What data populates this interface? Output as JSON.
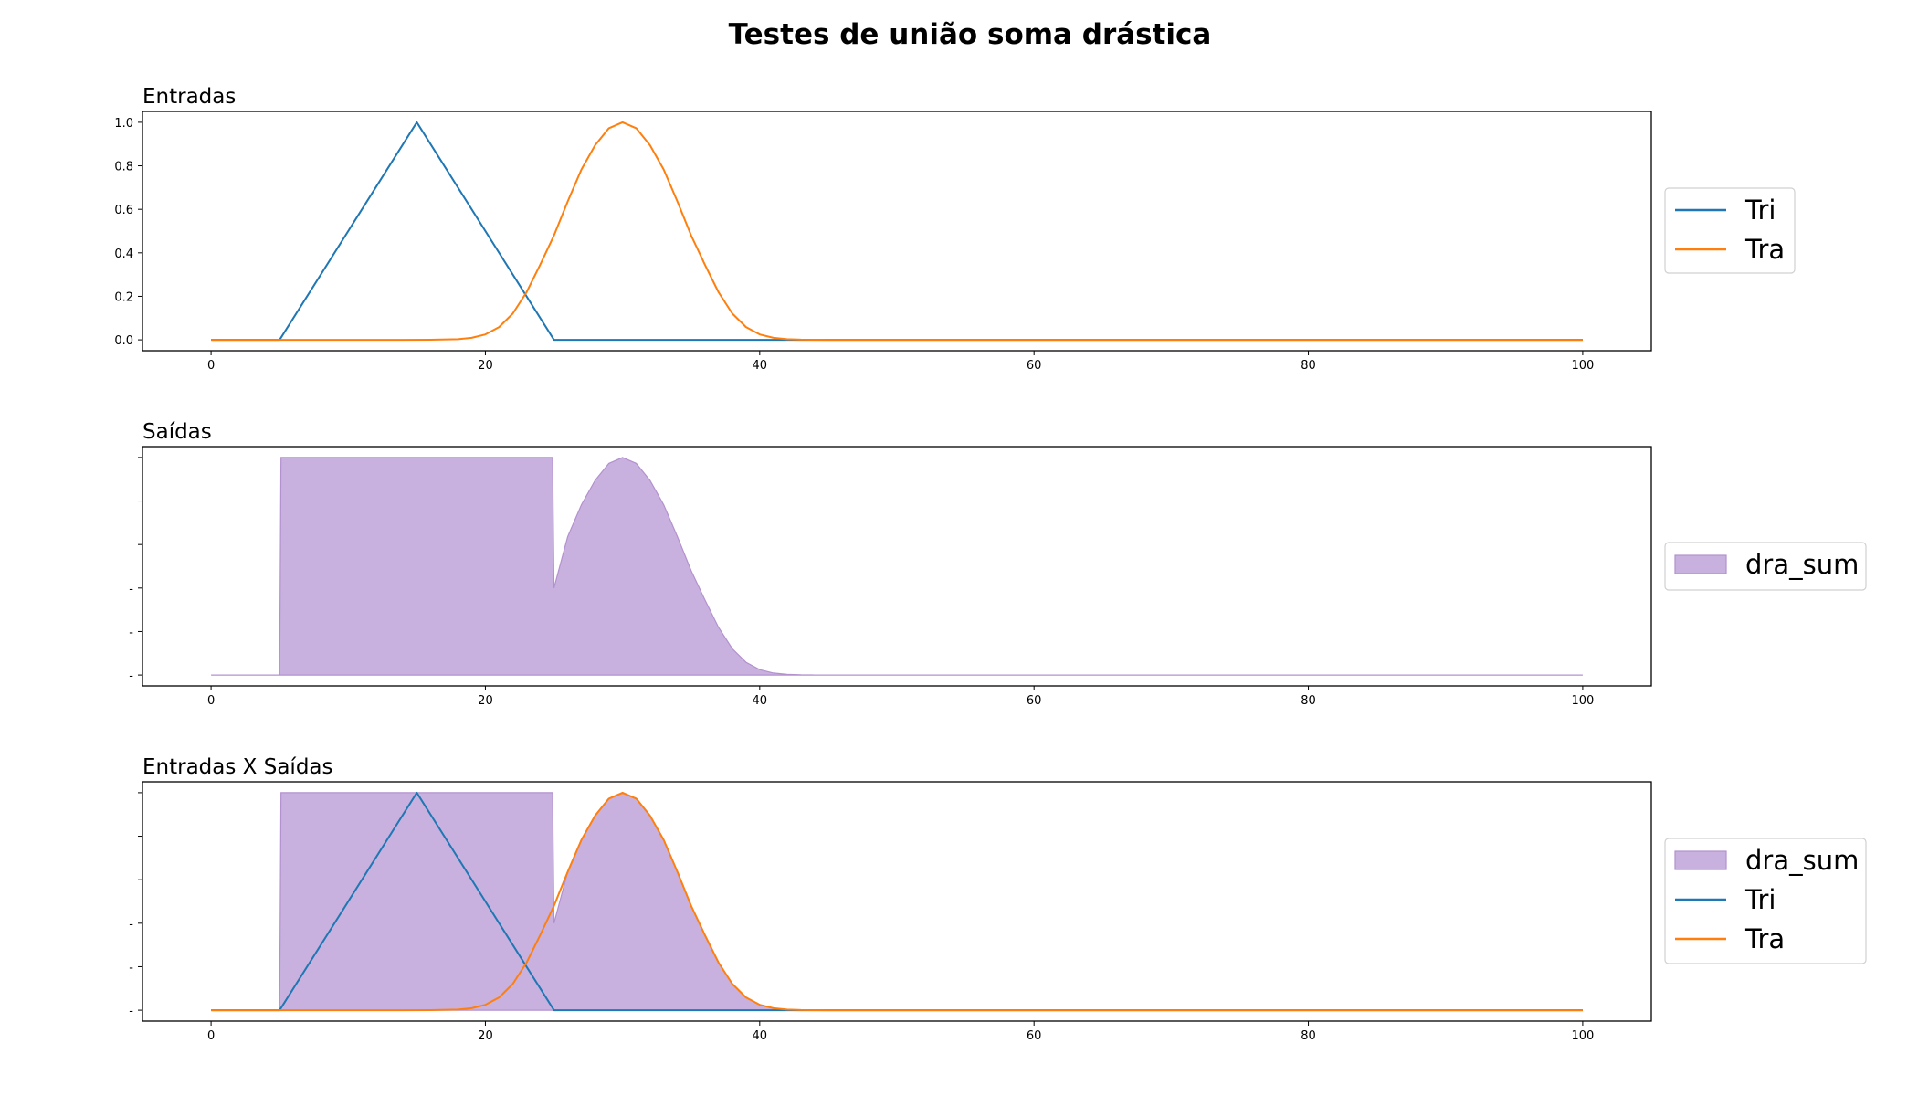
{
  "figure": {
    "title": "Testes de união soma drástica"
  },
  "colors": {
    "tri": "#1f77b4",
    "tra": "#ff7f0e",
    "dra_sum_fill": "#c8b1de",
    "dra_sum_edge": "#b391cf"
  },
  "chart_data": [
    {
      "type": "line",
      "title": "Entradas",
      "xlim": [
        -5,
        105
      ],
      "ylim": [
        -0.05,
        1.05
      ],
      "xticks": [
        0,
        20,
        40,
        60,
        80,
        100
      ],
      "yticks": [
        "0.0",
        "0.2",
        "0.4",
        "0.6",
        "0.8",
        "1.0"
      ],
      "legend_position": "right",
      "series": [
        {
          "name": "Tri",
          "kind": "line",
          "color": "#1f77b4",
          "x": [
            0,
            5,
            15,
            25,
            100
          ],
          "y": [
            0,
            0,
            1,
            0,
            0
          ]
        },
        {
          "name": "Tra",
          "kind": "line",
          "color": "#ff7f0e",
          "x": [
            0,
            2,
            4,
            6,
            8,
            10,
            12,
            14,
            16,
            18,
            19,
            20,
            21,
            22,
            23,
            24,
            25,
            26,
            27,
            28,
            29,
            30,
            31,
            32,
            33,
            34,
            35,
            36,
            37,
            38,
            39,
            40,
            41,
            42,
            43,
            44,
            45,
            46,
            48,
            50,
            55,
            60,
            70,
            80,
            90,
            100
          ],
          "y": [
            0,
            0,
            0,
            0,
            0,
            0,
            0,
            0,
            0.0002,
            0.003,
            0.0092,
            0.0249,
            0.0587,
            0.1211,
            0.2187,
            0.3461,
            0.48,
            0.636,
            0.7827,
            0.8948,
            0.9727,
            1.0,
            0.9727,
            0.8948,
            0.7827,
            0.636,
            0.48,
            0.3461,
            0.2187,
            0.1211,
            0.0587,
            0.0249,
            0.0092,
            0.003,
            0.0009,
            0.0002,
            0,
            0,
            0,
            0,
            0,
            0,
            0,
            0,
            0,
            0
          ]
        }
      ]
    },
    {
      "type": "area",
      "title": "Saídas",
      "xlim": [
        -5,
        105
      ],
      "ylim": [
        -0.05,
        1.05
      ],
      "xticks": [
        0,
        20,
        40,
        60,
        80,
        100
      ],
      "yticks": [
        "-",
        "-",
        "-",
        "",
        "",
        ""
      ],
      "legend_position": "right",
      "series": [
        {
          "name": "dra_sum",
          "kind": "area",
          "color": "#c8b1de",
          "x": [
            0,
            5,
            5.1,
            24.9,
            25,
            26,
            27,
            28,
            29,
            30,
            31,
            32,
            33,
            34,
            35,
            36,
            37,
            38,
            39,
            40,
            41,
            42,
            43,
            44,
            45,
            46,
            48,
            50,
            55,
            60,
            70,
            80,
            90,
            100
          ],
          "y": [
            0,
            0,
            1,
            1,
            0.4,
            0.636,
            0.7827,
            0.8948,
            0.9727,
            1.0,
            0.9727,
            0.8948,
            0.7827,
            0.636,
            0.48,
            0.3461,
            0.2187,
            0.1211,
            0.0587,
            0.0249,
            0.0092,
            0.003,
            0.0009,
            0.0002,
            0,
            0,
            0,
            0,
            0,
            0,
            0,
            0,
            0,
            0
          ]
        }
      ]
    },
    {
      "type": "area",
      "title": "Entradas X Saídas",
      "xlim": [
        -5,
        105
      ],
      "ylim": [
        -0.05,
        1.05
      ],
      "xticks": [
        0,
        20,
        40,
        60,
        80,
        100
      ],
      "yticks": [
        "-",
        "-",
        "-",
        "",
        "",
        ""
      ],
      "legend_position": "right",
      "series": [
        {
          "name": "dra_sum",
          "kind": "area",
          "color": "#c8b1de",
          "x": [
            0,
            5,
            5.1,
            24.9,
            25,
            26,
            27,
            28,
            29,
            30,
            31,
            32,
            33,
            34,
            35,
            36,
            37,
            38,
            39,
            40,
            41,
            42,
            43,
            44,
            45,
            46,
            48,
            50,
            55,
            60,
            70,
            80,
            90,
            100
          ],
          "y": [
            0,
            0,
            1,
            1,
            0.4,
            0.636,
            0.7827,
            0.8948,
            0.9727,
            1.0,
            0.9727,
            0.8948,
            0.7827,
            0.636,
            0.48,
            0.3461,
            0.2187,
            0.1211,
            0.0587,
            0.0249,
            0.0092,
            0.003,
            0.0009,
            0.0002,
            0,
            0,
            0,
            0,
            0,
            0,
            0,
            0,
            0,
            0
          ]
        },
        {
          "name": "Tri",
          "kind": "line",
          "color": "#1f77b4",
          "x": [
            0,
            5,
            15,
            25,
            100
          ],
          "y": [
            0,
            0,
            1,
            0,
            0
          ]
        },
        {
          "name": "Tra",
          "kind": "line",
          "color": "#ff7f0e",
          "x": [
            0,
            2,
            4,
            6,
            8,
            10,
            12,
            14,
            16,
            18,
            19,
            20,
            21,
            22,
            23,
            24,
            25,
            26,
            27,
            28,
            29,
            30,
            31,
            32,
            33,
            34,
            35,
            36,
            37,
            38,
            39,
            40,
            41,
            42,
            43,
            44,
            45,
            46,
            48,
            50,
            55,
            60,
            70,
            80,
            90,
            100
          ],
          "y": [
            0,
            0,
            0,
            0,
            0,
            0,
            0,
            0,
            0.0002,
            0.003,
            0.0092,
            0.0249,
            0.0587,
            0.1211,
            0.2187,
            0.3461,
            0.48,
            0.636,
            0.7827,
            0.8948,
            0.9727,
            1.0,
            0.9727,
            0.8948,
            0.7827,
            0.636,
            0.48,
            0.3461,
            0.2187,
            0.1211,
            0.0587,
            0.0249,
            0.0092,
            0.003,
            0.0009,
            0.0002,
            0,
            0,
            0,
            0,
            0,
            0,
            0,
            0,
            0,
            0
          ]
        }
      ]
    }
  ]
}
